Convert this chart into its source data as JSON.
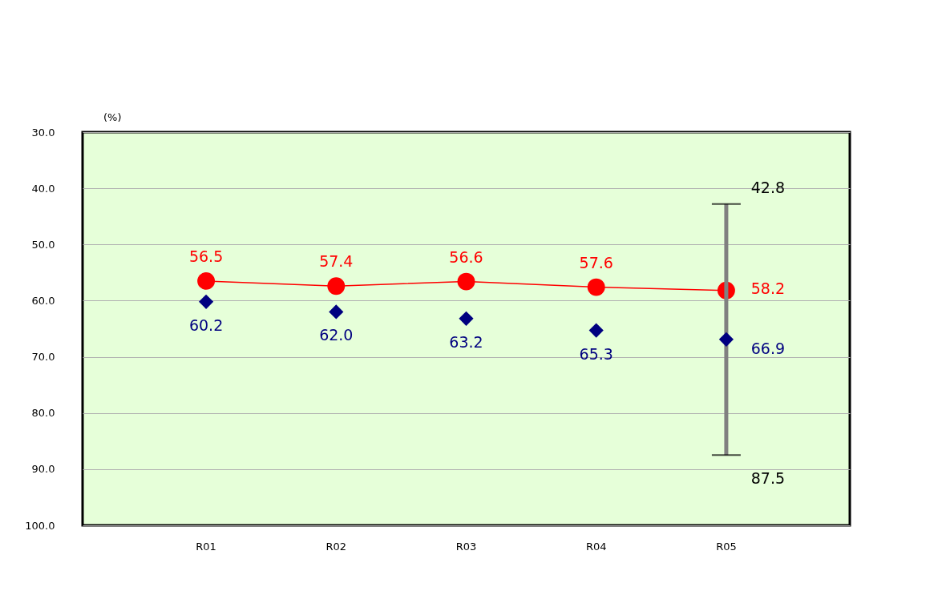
{
  "chart_data": {
    "type": "line",
    "categories": [
      "R01",
      "R02",
      "R03",
      "R04",
      "R05"
    ],
    "ylabel": "(%)",
    "ylim": [
      100,
      30
    ],
    "yticks": [
      {
        "value": 30,
        "label": "30.0"
      },
      {
        "value": 40,
        "label": "40.0"
      },
      {
        "value": 50,
        "label": "50.0"
      },
      {
        "value": 60,
        "label": "60.0"
      },
      {
        "value": 70,
        "label": "70.0"
      },
      {
        "value": 80,
        "label": "80.0"
      },
      {
        "value": 90,
        "label": "90.0"
      },
      {
        "value": 100,
        "label": "100.0"
      }
    ],
    "grid": "y",
    "series": [
      {
        "type": "line",
        "color": "#ff0000",
        "marker": "circle",
        "line_style": "solid",
        "values": [
          56.5,
          57.4,
          56.6,
          57.6,
          58.2
        ],
        "value_labels": [
          "56.5",
          "57.4",
          "56.6",
          "57.6",
          "58.2"
        ]
      },
      {
        "type": "scatter",
        "color": "#000080",
        "marker": "diamond",
        "values": [
          60.2,
          62.0,
          63.2,
          65.3,
          66.9
        ],
        "value_labels": [
          "60.2",
          "62.0",
          "63.2",
          "65.3",
          "66.9"
        ],
        "errors": [
          null,
          null,
          null,
          null,
          [
            42.8,
            87.5
          ]
        ]
      }
    ],
    "annotations": [
      {
        "text": "42.8",
        "x": "R05",
        "y": 42.8
      },
      {
        "text": "87.5",
        "x": "R05",
        "y": 87.5
      }
    ]
  }
}
